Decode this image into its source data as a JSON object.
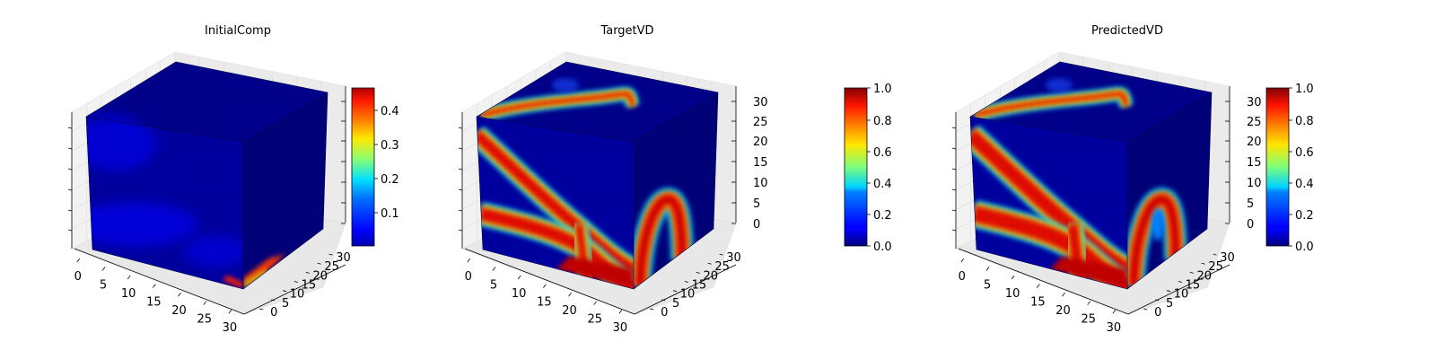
{
  "figure": {
    "panels": [
      {
        "title": "InitialComp"
      },
      {
        "title": "TargetVD"
      },
      {
        "title": "PredictedVD"
      }
    ]
  },
  "chart_data": [
    {
      "type": "heatmap",
      "subtype": "3d-voxel",
      "title": "InitialComp",
      "colormap": "jet",
      "x_ticks": [
        "0",
        "5",
        "10",
        "15",
        "20",
        "25",
        "30"
      ],
      "y_ticks": [
        "0",
        "5",
        "10",
        "15",
        "20",
        "25",
        "30"
      ],
      "z_ticks": [],
      "xlim": [
        0,
        32
      ],
      "ylim": [
        0,
        32
      ],
      "zlim": [
        0,
        32
      ],
      "colorbar": {
        "range": [
          0.02,
          0.46
        ],
        "ticks": [
          "0.1",
          "0.2",
          "0.3",
          "0.4"
        ]
      },
      "description": "Mostly low values (~0.05-0.1) with a small hot spot (~0.46) at the bottom front-right corner"
    },
    {
      "type": "heatmap",
      "subtype": "3d-voxel",
      "title": "TargetVD",
      "colormap": "jet",
      "x_ticks": [
        "0",
        "5",
        "10",
        "15",
        "20",
        "25",
        "30"
      ],
      "y_ticks": [
        "0",
        "5",
        "10",
        "15",
        "20",
        "25",
        "30"
      ],
      "z_ticks": [
        "0",
        "5",
        "10",
        "15",
        "20",
        "25",
        "30"
      ],
      "xlim": [
        0,
        32
      ],
      "ylim": [
        0,
        32
      ],
      "zlim": [
        0,
        32
      ],
      "colorbar": {
        "range": [
          0.0,
          1.0
        ],
        "ticks": [
          "0.0",
          "0.2",
          "0.4",
          "0.6",
          "0.8",
          "1.0"
        ]
      }
    },
    {
      "type": "heatmap",
      "subtype": "3d-voxel",
      "title": "PredictedVD",
      "colormap": "jet",
      "x_ticks": [
        "0",
        "5",
        "10",
        "15",
        "20",
        "25",
        "30"
      ],
      "y_ticks": [
        "0",
        "5",
        "10",
        "15",
        "20",
        "25",
        "30"
      ],
      "z_ticks": [
        "0",
        "5",
        "10",
        "15",
        "20",
        "25",
        "30"
      ],
      "xlim": [
        0,
        32
      ],
      "ylim": [
        0,
        32
      ],
      "zlim": [
        0,
        32
      ],
      "colorbar": {
        "range": [
          0.0,
          1.0
        ],
        "ticks": [
          "0.0",
          "0.2",
          "0.4",
          "0.6",
          "0.8",
          "1.0"
        ]
      }
    }
  ]
}
